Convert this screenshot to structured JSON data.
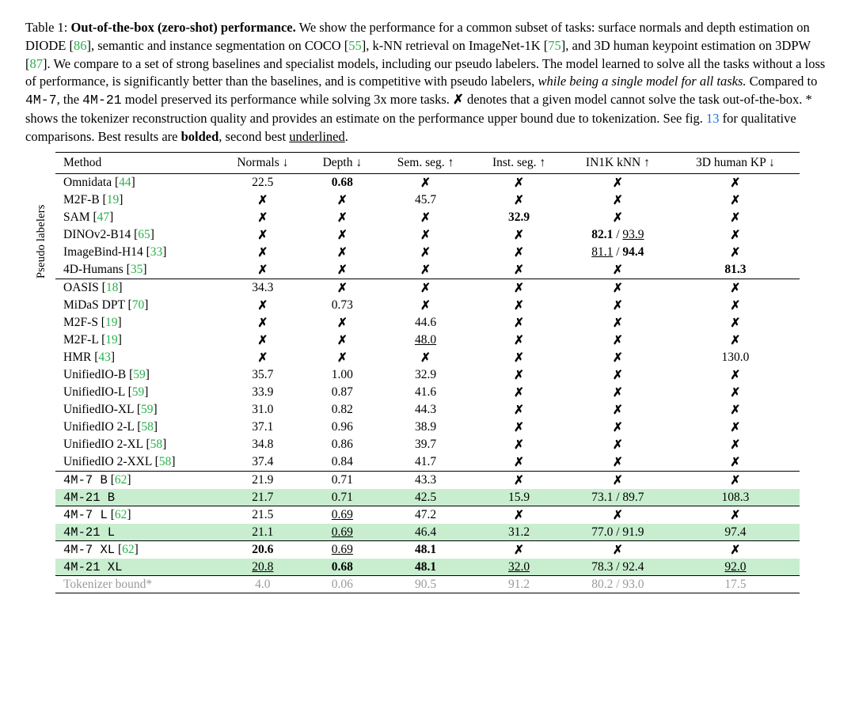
{
  "caption": {
    "label": "Table 1:",
    "title": "Out-of-the-box (zero-shot) performance.",
    "body_pre_refs": " We show the performance for a common subset of tasks: surface normals and depth estimation on DIODE [",
    "r86": "86",
    "body_a": "], semantic and instance segmentation on COCO [",
    "r55": "55",
    "body_b": "], k-NN retrieval on ImageNet-1K [",
    "r75": "75",
    "body_c": "], and 3D human keypoint estimation on 3DPW [",
    "r87": "87",
    "body_d": "]. We compare to a set of strong baselines and specialist models, including our pseudo labelers. The model learned to solve all the tasks without a loss of performance, is significantly better than the baselines, and is competitive with pseudo labelers, ",
    "ital": "while being a single model for all tasks.",
    "body_e": " Compared to ",
    "m4m7": "4M-7",
    "body_f": ", the ",
    "m4m21": "4M-21",
    "body_g": " model preserved its performance while solving 3x more tasks. ",
    "x": "✗",
    "body_h": " denotes that a given model cannot solve the task out-of-the-box. * shows the tokenizer reconstruction quality and provides an estimate on the performance upper bound due to tokenization. See fig. ",
    "fig": "13",
    "body_i": " for qualitative comparisons. Best results are ",
    "bold": "bolded",
    "body_j": ", second best ",
    "under": "underlined",
    "body_k": "."
  },
  "vlabel": "Pseudo labelers",
  "X": "✗",
  "headers": {
    "method": "Method",
    "normals": "Normals ↓",
    "depth": "Depth ↓",
    "semseg": "Sem. seg. ↑",
    "instseg": "Inst. seg. ↑",
    "in1k": "IN1K kNN ↑",
    "hkp": "3D human KP ↓"
  },
  "pseudo": [
    {
      "name": "Omnidata",
      "ref": "44",
      "normals": {
        "v": "22.5"
      },
      "depth": {
        "v": "0.68",
        "b": true
      }
    },
    {
      "name": "M2F-B",
      "ref": "19",
      "semseg": {
        "v": "45.7"
      }
    },
    {
      "name": "SAM",
      "ref": "47",
      "instseg": {
        "v": "32.9",
        "b": true
      }
    },
    {
      "name": "DINOv2-B14",
      "ref": "65",
      "in1k": {
        "v1": "82.1",
        "s1": "b",
        "v2": "93.9",
        "s2": "u"
      }
    },
    {
      "name": "ImageBind-H14",
      "ref": "33",
      "in1k": {
        "v1": "81.1",
        "s1": "u",
        "v2": "94.4",
        "s2": "b"
      }
    },
    {
      "name": "4D-Humans",
      "ref": "35",
      "hkp": {
        "v": "81.3",
        "b": true
      }
    }
  ],
  "baselines": [
    {
      "name": "OASIS",
      "ref": "18",
      "normals": {
        "v": "34.3"
      }
    },
    {
      "name": "MiDaS DPT",
      "ref": "70",
      "depth": {
        "v": "0.73"
      }
    },
    {
      "name": "M2F-S",
      "ref": "19",
      "semseg": {
        "v": "44.6"
      }
    },
    {
      "name": "M2F-L",
      "ref": "19",
      "semseg": {
        "v": "48.0",
        "u": true
      }
    },
    {
      "name": "HMR",
      "ref": "43",
      "hkp": {
        "v": "130.0"
      }
    },
    {
      "name": "UnifiedIO-B",
      "ref": "59",
      "normals": {
        "v": "35.7"
      },
      "depth": {
        "v": "1.00"
      },
      "semseg": {
        "v": "32.9"
      }
    },
    {
      "name": "UnifiedIO-L",
      "ref": "59",
      "normals": {
        "v": "33.9"
      },
      "depth": {
        "v": "0.87"
      },
      "semseg": {
        "v": "41.6"
      }
    },
    {
      "name": "UnifiedIO-XL",
      "ref": "59",
      "normals": {
        "v": "31.0"
      },
      "depth": {
        "v": "0.82"
      },
      "semseg": {
        "v": "44.3"
      }
    },
    {
      "name": "UnifiedIO 2-L",
      "ref": "58",
      "normals": {
        "v": "37.1"
      },
      "depth": {
        "v": "0.96"
      },
      "semseg": {
        "v": "38.9"
      }
    },
    {
      "name": "UnifiedIO 2-XL",
      "ref": "58",
      "normals": {
        "v": "34.8"
      },
      "depth": {
        "v": "0.86"
      },
      "semseg": {
        "v": "39.7"
      }
    },
    {
      "name": "UnifiedIO 2-XXL",
      "ref": "58",
      "normals": {
        "v": "37.4"
      },
      "depth": {
        "v": "0.84"
      },
      "semseg": {
        "v": "41.7"
      }
    }
  ],
  "ours": [
    {
      "name": "4M-7 B",
      "mono": true,
      "ref": "62",
      "normals": {
        "v": "21.9"
      },
      "depth": {
        "v": "0.71"
      },
      "semseg": {
        "v": "43.3"
      }
    },
    {
      "name": "4M-21 B",
      "mono": true,
      "hl": true,
      "normals": {
        "v": "21.7"
      },
      "depth": {
        "v": "0.71"
      },
      "semseg": {
        "v": "42.5"
      },
      "instseg": {
        "v": "15.9"
      },
      "in1k": {
        "v": "73.1 / 89.7"
      },
      "hkp": {
        "v": "108.3"
      }
    },
    {
      "sep": true
    },
    {
      "name": "4M-7 L",
      "mono": true,
      "ref": "62",
      "normals": {
        "v": "21.5"
      },
      "depth": {
        "v": "0.69",
        "u": true
      },
      "semseg": {
        "v": "47.2"
      }
    },
    {
      "name": "4M-21 L",
      "mono": true,
      "hl": true,
      "normals": {
        "v": "21.1"
      },
      "depth": {
        "v": "0.69",
        "u": true
      },
      "semseg": {
        "v": "46.4"
      },
      "instseg": {
        "v": "31.2"
      },
      "in1k": {
        "v": "77.0 / 91.9"
      },
      "hkp": {
        "v": "97.4"
      }
    },
    {
      "sep": true
    },
    {
      "name": "4M-7 XL",
      "mono": true,
      "ref": "62",
      "normals": {
        "v": "20.6",
        "b": true
      },
      "depth": {
        "v": "0.69",
        "u": true
      },
      "semseg": {
        "v": "48.1",
        "b": true
      }
    },
    {
      "name": "4M-21 XL",
      "mono": true,
      "hl": true,
      "normals": {
        "v": "20.8",
        "u": true
      },
      "depth": {
        "v": "0.68",
        "b": true
      },
      "semseg": {
        "v": "48.1",
        "b": true
      },
      "instseg": {
        "v": "32.0",
        "u": true
      },
      "in1k": {
        "v": "78.3 / 92.4"
      },
      "hkp": {
        "v": "92.0",
        "u": true
      }
    }
  ],
  "bound": {
    "name": "Tokenizer bound*",
    "normals": "4.0",
    "depth": "0.06",
    "semseg": "90.5",
    "instseg": "91.2",
    "in1k": "80.2 / 93.0",
    "hkp": "17.5"
  },
  "colors": {
    "highlight": "#c8eecf",
    "ref": "#27b24a",
    "link": "#1f6fe0",
    "grey": "#9a9a9a"
  }
}
